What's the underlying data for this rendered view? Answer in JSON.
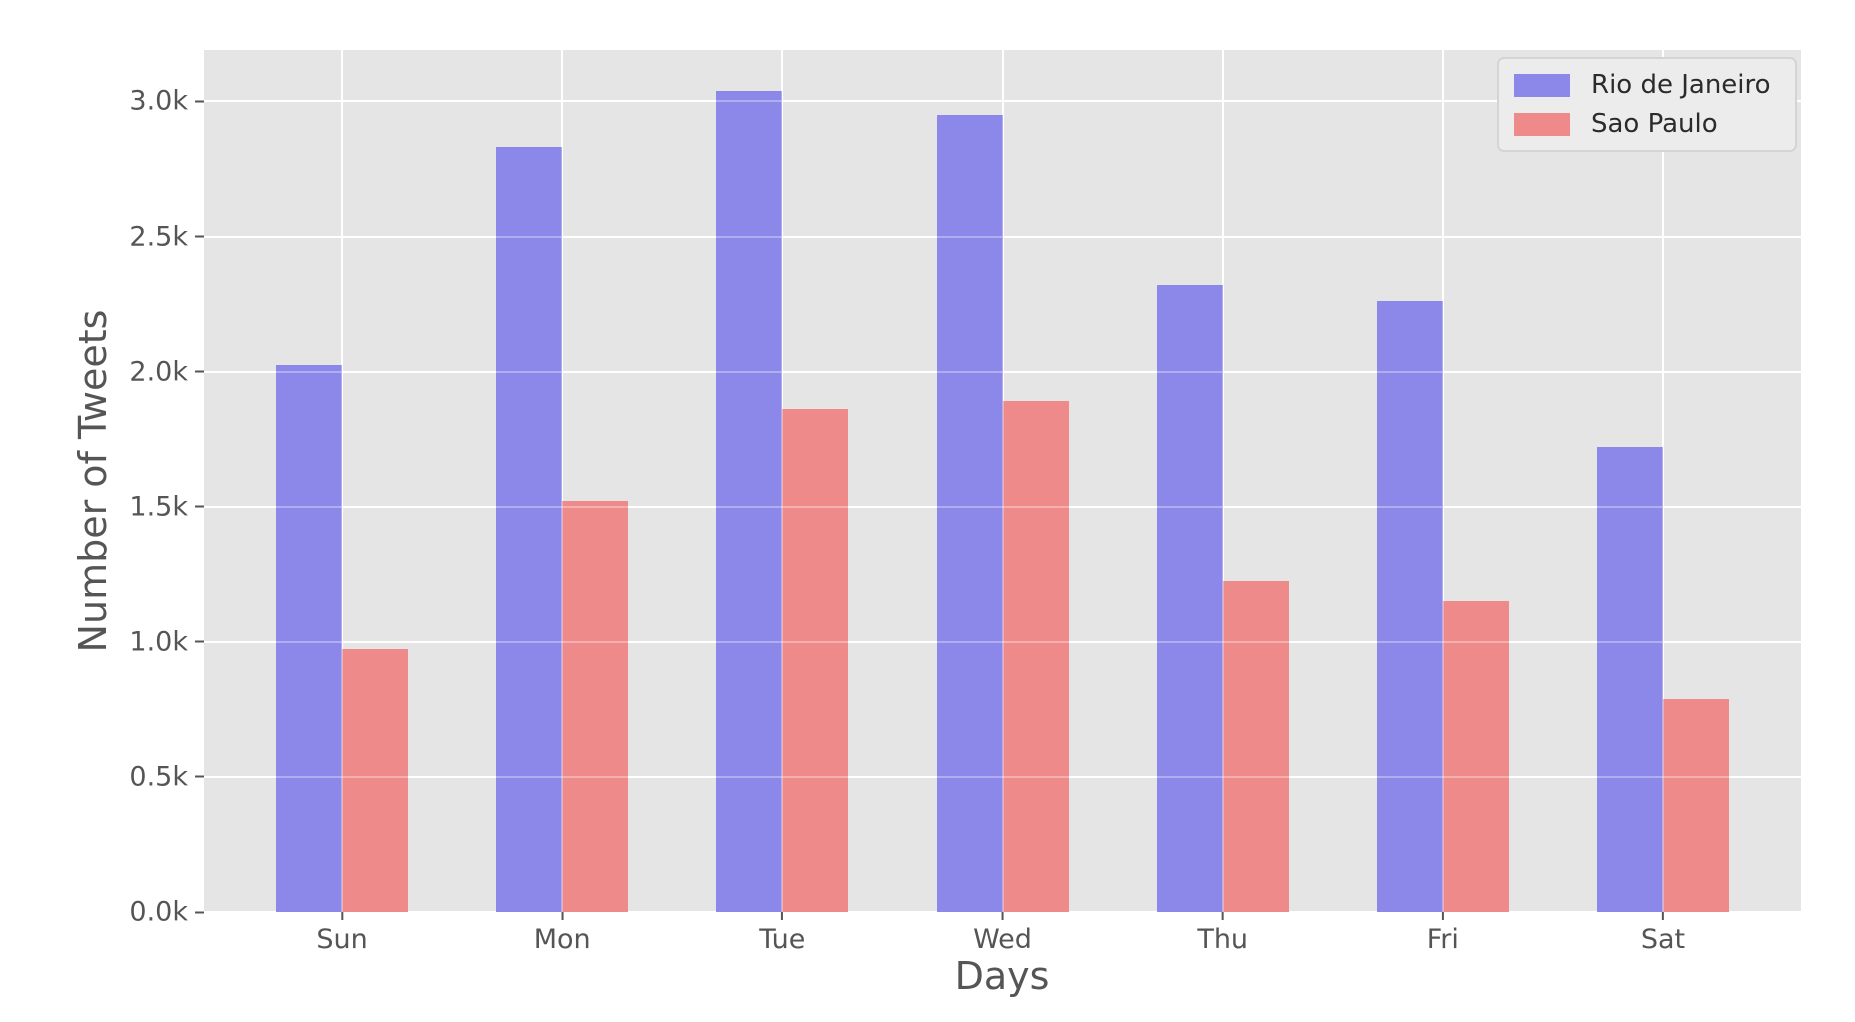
{
  "chart_data": {
    "type": "bar",
    "categories": [
      "Sun",
      "Mon",
      "Tue",
      "Wed",
      "Thu",
      "Fri",
      "Sat"
    ],
    "series": [
      {
        "name": "Rio de Janeiro",
        "color": "#8b88ea",
        "values": [
          2025,
          2830,
          3040,
          2950,
          2320,
          2260,
          1720
        ]
      },
      {
        "name": "Sao Paulo",
        "color": "#ef8a8a",
        "values": [
          975,
          1520,
          1860,
          1890,
          1225,
          1150,
          790
        ]
      }
    ],
    "title": "",
    "xlabel": "Days",
    "ylabel": "Number of Tweets",
    "ylim": [
      0,
      3190
    ],
    "yticks": {
      "values": [
        0,
        500,
        1000,
        1500,
        2000,
        2500,
        3000
      ],
      "labels": [
        "0.0k",
        "0.5k",
        "1.0k",
        "1.5k",
        "2.0k",
        "2.5k",
        "3.0k"
      ]
    },
    "grid": true,
    "legend_position": "upper right",
    "colors": {
      "plot_background": "#e5e5e5",
      "figure_background": "#ffffff",
      "gridline": "#ffffff",
      "tick_text": "#555555",
      "axis_label_text": "#555555",
      "legend_text": "#2b2b2b",
      "legend_background": "#ececec",
      "legend_border": "#d4d4d4"
    }
  }
}
